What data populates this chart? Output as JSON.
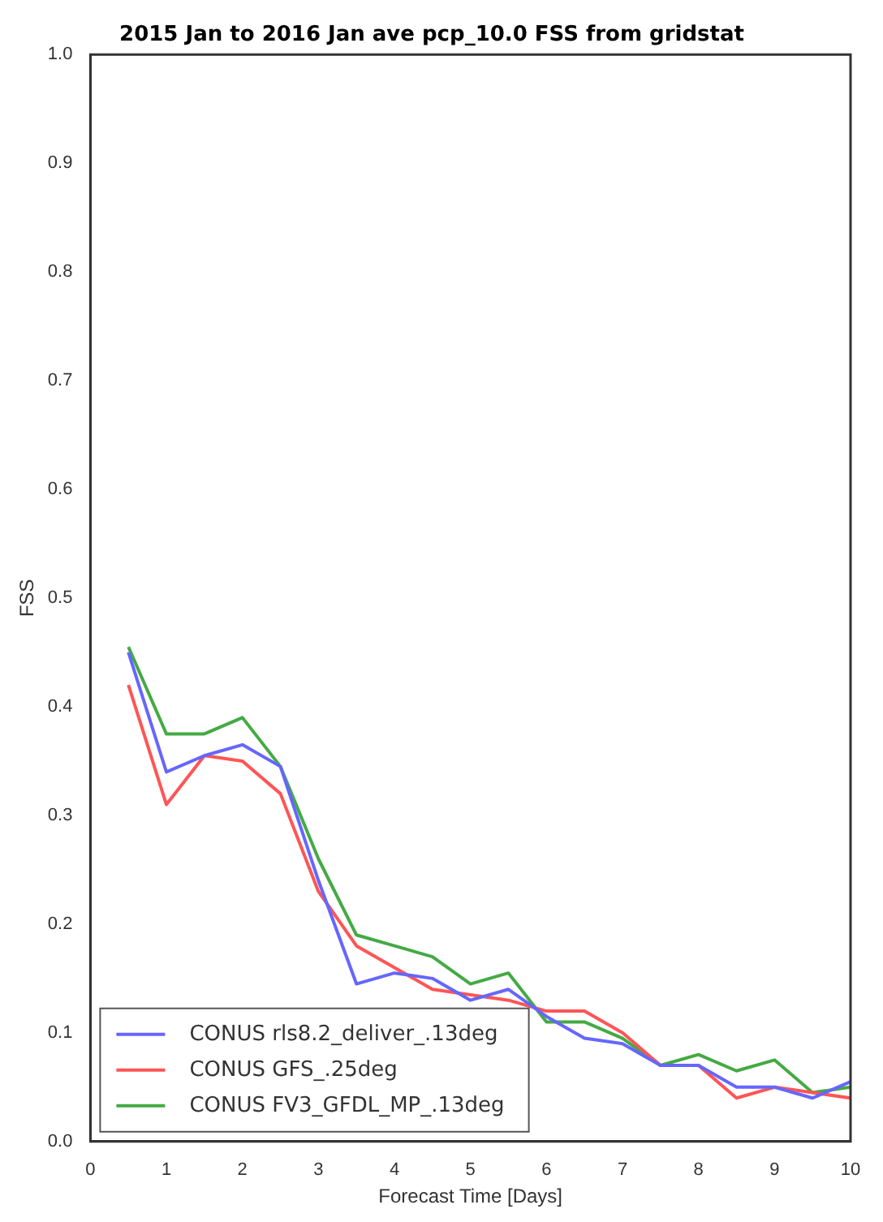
{
  "chart_data": {
    "type": "line",
    "title": "2015 Jan to 2016 Jan ave pcp_10.0 FSS from gridstat",
    "xlabel": "Forecast Time [Days]",
    "ylabel": "FSS",
    "x": [
      0.5,
      1,
      1.5,
      2,
      2.5,
      3,
      3.5,
      4,
      4.5,
      5,
      5.5,
      6,
      6.5,
      7,
      7.5,
      8,
      8.5,
      9,
      9.5,
      10
    ],
    "series": [
      {
        "name": "CONUS rls8.2_deliver_.13deg",
        "color": "#6666ff",
        "values": [
          0.45,
          0.34,
          0.355,
          0.365,
          0.345,
          0.24,
          0.145,
          0.155,
          0.15,
          0.13,
          0.14,
          0.115,
          0.095,
          0.09,
          0.07,
          0.07,
          0.05,
          0.05,
          0.04,
          0.055
        ]
      },
      {
        "name": "CONUS GFS_.25deg",
        "color": "#ff5555",
        "values": [
          0.42,
          0.31,
          0.355,
          0.35,
          0.32,
          0.23,
          0.18,
          0.16,
          0.14,
          null,
          0.13,
          0.12,
          0.12,
          0.1,
          0.07,
          0.07,
          0.04,
          0.05,
          0.045,
          0.04
        ]
      },
      {
        "name": "CONUS FV3_GFDL_MP_.13deg",
        "color": "#44aa44",
        "values": [
          0.455,
          0.375,
          0.375,
          0.39,
          0.345,
          0.26,
          0.19,
          0.18,
          0.17,
          0.145,
          0.155,
          0.11,
          0.11,
          0.095,
          0.07,
          0.08,
          0.065,
          0.075,
          0.045,
          0.05
        ]
      }
    ],
    "xlim": [
      0,
      10
    ],
    "xticks": [
      0,
      1,
      2,
      3,
      4,
      5,
      6,
      7,
      8,
      9,
      10
    ],
    "ylim": [
      0,
      1
    ],
    "yticks": [
      {
        "value": 0,
        "label": "0.0"
      },
      0.1,
      0.2,
      0.3,
      0.4,
      0.5,
      0.6,
      0.7,
      0.8,
      0.9,
      {
        "value": 1,
        "label": "1.0"
      }
    ],
    "grid": false,
    "legend": "bottom left",
    "marker": "none",
    "line_style": "solid"
  }
}
